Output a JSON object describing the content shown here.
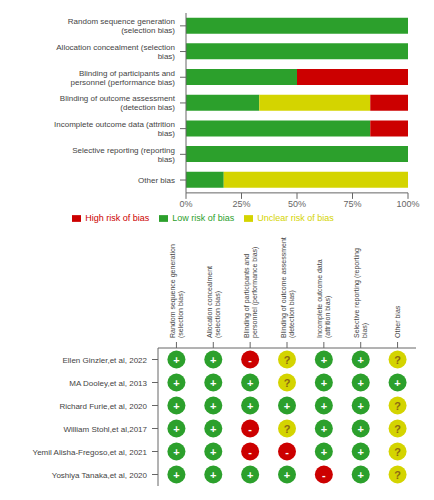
{
  "chart_data": [
    {
      "type": "bar",
      "orientation": "horizontal",
      "stacked": true,
      "categories": [
        "Random sequence generation (selection bias)",
        "Allocation concealment (selection bias)",
        "Blinding of participants and personnel (performance bias)",
        "Blinding of outcome assessment (detection bias)",
        "Incomplete outcome data (attrition bias)",
        "Selective reporting (reporting bias)",
        "Other bias"
      ],
      "series": [
        {
          "name": "Low risk of bias",
          "color": "#2ca02c",
          "values": [
            100,
            100,
            50,
            33,
            83,
            100,
            17
          ]
        },
        {
          "name": "Unclear risk of bias",
          "color": "#d4d400",
          "values": [
            0,
            0,
            0,
            50,
            0,
            0,
            83
          ]
        },
        {
          "name": "High risk of bias",
          "color": "#cc0000",
          "values": [
            0,
            0,
            50,
            17,
            17,
            0,
            0
          ]
        }
      ],
      "xlim": [
        0,
        100
      ],
      "xticks": [
        {
          "value": 0,
          "label": "0%"
        },
        {
          "value": 25,
          "label": "25%"
        },
        {
          "value": 50,
          "label": "50%"
        },
        {
          "value": 75,
          "label": "75%"
        },
        {
          "value": 100,
          "label": "100%"
        }
      ],
      "legend": "bottom"
    },
    {
      "type": "heatmap",
      "categories": [
        "Random sequence generation (selection bias)",
        "Allocation concealment (selection bias)",
        "Blinding of participants and personnel (performance bias)",
        "Blinding of outcome assessment (detection bias)",
        "Incomplete outcome data (attrition bias)",
        "Selective reporting (reporting bias)",
        "Other bias"
      ],
      "rows": [
        "Ellen Ginzler,et al, 2022",
        "MA Dooley,et al, 2013",
        "Richard Furie,et al, 2020",
        "William Stohl,et al,2017",
        "Yemil Alisha-Fregoso,et al, 2021",
        "Yoshiya Tanaka,et al, 2020"
      ],
      "cells": [
        [
          "+",
          "+",
          "-",
          "?",
          "+",
          "+",
          "?"
        ],
        [
          "+",
          "+",
          "+",
          "?",
          "+",
          "+",
          "+"
        ],
        [
          "+",
          "+",
          "+",
          "+",
          "+",
          "+",
          "?"
        ],
        [
          "+",
          "+",
          "-",
          "?",
          "+",
          "+",
          "?"
        ],
        [
          "+",
          "+",
          "-",
          "-",
          "+",
          "+",
          "?"
        ],
        [
          "+",
          "+",
          "+",
          "+",
          "-",
          "+",
          "?"
        ]
      ],
      "cell_colors": {
        "+": "#2ca02c",
        "?": "#d4d400",
        "-": "#cc0000"
      },
      "symbol_colors": {
        "+": "#ffffff",
        "?": "#8B6914",
        "-": "#ffffff"
      }
    }
  ]
}
